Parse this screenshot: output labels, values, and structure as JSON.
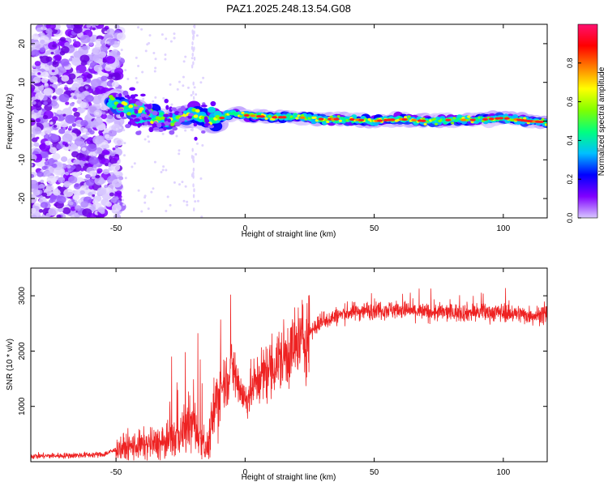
{
  "title": "PAZ1.2025.248.13.54.G08",
  "chart_data": [
    {
      "type": "heatmap",
      "name": "spectrogram",
      "xlabel": "Height of straight line (km)",
      "ylabel": "Frequency (Hz)",
      "xlim": [
        -83,
        117
      ],
      "ylim": [
        -25,
        25
      ],
      "xticks": [
        -50,
        0,
        50,
        100
      ],
      "xtick_labels": [
        "-50",
        "0",
        "50",
        "100"
      ],
      "yticks": [
        -20,
        -10,
        0,
        10,
        20
      ],
      "ytick_labels": [
        "-20",
        "-10",
        "0",
        "10",
        "20"
      ],
      "colorbar": {
        "label": "Normalized spectral amplitude",
        "range": [
          0,
          1
        ],
        "ticks": [
          0,
          0.2,
          0.4,
          0.6,
          0.8
        ],
        "tick_labels": [
          "0.0",
          "0.2",
          "0.4",
          "0.6",
          "0.8"
        ],
        "colormap": [
          "#d8c8ff",
          "#8000ff",
          "#0000ff",
          "#00bfff",
          "#00ff80",
          "#80ff00",
          "#ffff00",
          "#ff8000",
          "#ff0000",
          "#ff1070"
        ]
      },
      "ridge": {
        "x": [
          -50,
          -45,
          -40,
          -35,
          -30,
          -25,
          -20,
          -15,
          -10,
          -5,
          0,
          10,
          20,
          30,
          40,
          50,
          60,
          70,
          80,
          90,
          100,
          110,
          117
        ],
        "frequency": [
          5,
          3,
          2,
          1,
          0,
          1,
          2,
          0,
          0.5,
          2,
          1.5,
          1,
          1,
          0.5,
          0.5,
          0,
          0.5,
          0,
          0.3,
          0.3,
          0.8,
          0,
          -0.3
        ]
      },
      "noise_region_x": [
        -83,
        -50
      ]
    },
    {
      "type": "line",
      "name": "snr",
      "xlabel": "Height of straight line (km)",
      "ylabel": "SNR (10 * v/v)",
      "xlim": [
        -83,
        117
      ],
      "ylim": [
        0,
        3500
      ],
      "xticks": [
        -50,
        0,
        50,
        100
      ],
      "xtick_labels": [
        "-50",
        "0",
        "50",
        "100"
      ],
      "yticks": [
        1000,
        2000,
        3000
      ],
      "ytick_labels": [
        "1000",
        "2000",
        "3000"
      ],
      "color": "#ee2222",
      "trend": {
        "x": [
          -83,
          -70,
          -55,
          -48,
          -40,
          -30,
          -25,
          -20,
          -15,
          -10,
          -5,
          0,
          5,
          10,
          15,
          20,
          25,
          30,
          40,
          50,
          60,
          70,
          80,
          90,
          100,
          110,
          117
        ],
        "y": [
          100,
          110,
          130,
          250,
          300,
          350,
          500,
          700,
          200,
          1300,
          1700,
          1100,
          1500,
          1700,
          1900,
          2100,
          2350,
          2550,
          2700,
          2750,
          2750,
          2700,
          2700,
          2700,
          2700,
          2650,
          2650
        ]
      }
    }
  ]
}
